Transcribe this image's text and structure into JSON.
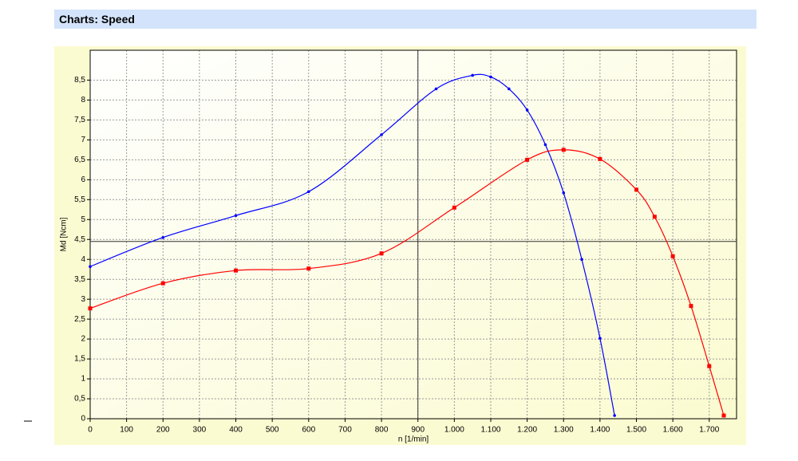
{
  "header": {
    "title": "Charts: Speed"
  },
  "chart_data": {
    "type": "line",
    "x_label": "n [1/min]",
    "y_label": "Md [Ncm]",
    "xlim": [
      0,
      1775
    ],
    "ylim": [
      0,
      9.25
    ],
    "xticks": [
      0,
      100,
      200,
      300,
      400,
      500,
      600,
      700,
      800,
      900,
      {
        "value": 1000,
        "label": "1.000"
      },
      {
        "value": 1100,
        "label": "1.100"
      },
      {
        "value": 1200,
        "label": "1.200"
      },
      {
        "value": 1300,
        "label": "1.300"
      },
      {
        "value": 1400,
        "label": "1.400"
      },
      {
        "value": 1500,
        "label": "1.500"
      },
      {
        "value": 1600,
        "label": "1.600"
      },
      {
        "value": 1700,
        "label": "1.700"
      }
    ],
    "yticks": [
      0,
      {
        "value": 0.5,
        "label": "0,5"
      },
      1,
      {
        "value": 1.5,
        "label": "1,5"
      },
      2,
      {
        "value": 2.5,
        "label": "2,5"
      },
      3,
      {
        "value": 3.5,
        "label": "3,5"
      },
      4,
      {
        "value": 4.5,
        "label": "4,5"
      },
      5,
      {
        "value": 5.5,
        "label": "5,5"
      },
      6,
      {
        "value": 6.5,
        "label": "6,5"
      },
      7,
      {
        "value": 7.5,
        "label": "7,5"
      },
      8,
      {
        "value": 8.5,
        "label": "8,5"
      }
    ],
    "grid": true,
    "crosshair": {
      "x": 900,
      "y": 4.45
    },
    "series": [
      {
        "color": "#0000ff",
        "marker": "circle",
        "x": [
          0,
          200,
          400,
          600,
          800,
          950,
          1050,
          1100,
          1150,
          1200,
          1250,
          1300,
          1350,
          1400,
          1440
        ],
        "values": [
          3.82,
          4.55,
          5.1,
          5.7,
          7.13,
          8.28,
          8.62,
          8.58,
          8.28,
          7.75,
          6.88,
          5.67,
          4.0,
          2.02,
          0.08
        ]
      },
      {
        "color": "#ff0000",
        "marker": "square",
        "x": [
          0,
          200,
          400,
          600,
          800,
          1000,
          1200,
          1300,
          1400,
          1500,
          1550,
          1600,
          1650,
          1700,
          1740
        ],
        "values": [
          2.77,
          3.4,
          3.72,
          3.77,
          4.15,
          5.3,
          6.5,
          6.75,
          6.52,
          5.75,
          5.07,
          4.08,
          2.83,
          1.32,
          0.08
        ]
      }
    ]
  }
}
